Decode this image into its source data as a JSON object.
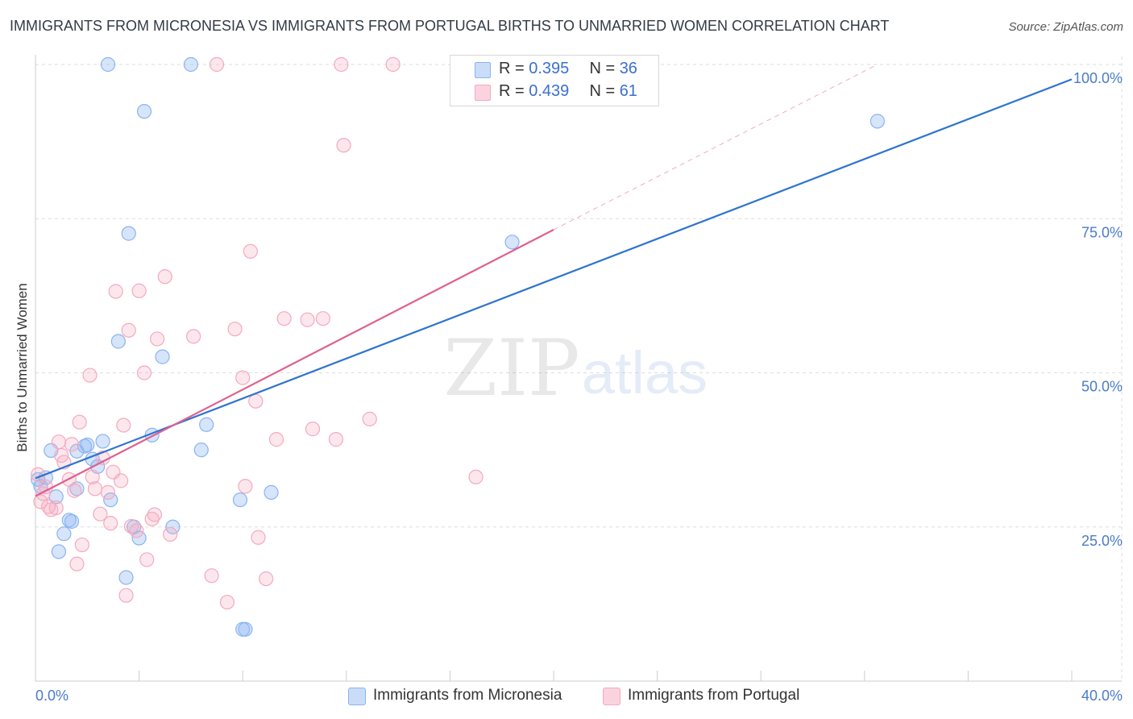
{
  "header": {
    "title": "IMMIGRANTS FROM MICRONESIA VS IMMIGRANTS FROM PORTUGAL BIRTHS TO UNMARRIED WOMEN CORRELATION CHART",
    "source": "Source: ZipAtlas.com"
  },
  "watermark": {
    "zip": "ZIP",
    "atlas": "atlas"
  },
  "legend": {
    "rows": [
      {
        "r_label": "R =",
        "r_value": "0.395",
        "n_label": "N =",
        "n_value": "36"
      },
      {
        "r_label": "R =",
        "r_value": "0.439",
        "n_label": "N =",
        "n_value": "61"
      }
    ]
  },
  "colors": {
    "micronesia": "#8ab4f0",
    "micronesia_line": "#2f73d0",
    "portugal": "#f4a9c0",
    "portugal_line": "#e0608e",
    "tick_label": "#4a7bc8"
  },
  "chart_data": {
    "type": "scatter",
    "title": "IMMIGRANTS FROM MICRONESIA VS IMMIGRANTS FROM PORTUGAL BIRTHS TO UNMARRIED WOMEN CORRELATION CHART",
    "xlabel": "",
    "ylabel": "Births to Unmarried Women",
    "xlim": [
      0,
      40
    ],
    "ylim": [
      0,
      100
    ],
    "x_tick_labels": [
      "0.0%",
      "40.0%"
    ],
    "y_tick_labels": [
      "25.0%",
      "50.0%",
      "75.0%",
      "100.0%"
    ],
    "y_ticks": [
      25,
      50,
      75,
      100
    ],
    "grid": true,
    "legend_position": "bottom",
    "series": [
      {
        "name": "Immigrants from Micronesia",
        "color": "#8ab4f0",
        "r": 0.395,
        "n": 36,
        "trend": {
          "x": [
            0,
            40
          ],
          "y": [
            32.9,
            97.6
          ]
        },
        "points": [
          [
            0.1,
            32.7
          ],
          [
            0.2,
            31.6
          ],
          [
            0.4,
            33.0
          ],
          [
            0.6,
            37.4
          ],
          [
            0.8,
            29.9
          ],
          [
            0.9,
            21.0
          ],
          [
            1.1,
            23.9
          ],
          [
            1.3,
            26.1
          ],
          [
            1.4,
            25.9
          ],
          [
            1.6,
            31.2
          ],
          [
            1.6,
            37.3
          ],
          [
            1.9,
            38.1
          ],
          [
            2.0,
            38.3
          ],
          [
            2.2,
            36.0
          ],
          [
            2.4,
            34.8
          ],
          [
            2.6,
            38.9
          ],
          [
            2.9,
            29.4
          ],
          [
            2.8,
            100
          ],
          [
            3.2,
            55.1
          ],
          [
            3.5,
            16.8
          ],
          [
            3.6,
            72.6
          ],
          [
            3.8,
            25.0
          ],
          [
            4.0,
            23.2
          ],
          [
            4.2,
            92.4
          ],
          [
            4.5,
            39.9
          ],
          [
            4.9,
            52.6
          ],
          [
            5.3,
            25.0
          ],
          [
            6.0,
            100
          ],
          [
            6.4,
            37.5
          ],
          [
            6.6,
            41.6
          ],
          [
            7.9,
            29.4
          ],
          [
            8.0,
            8.4
          ],
          [
            8.1,
            8.4
          ],
          [
            9.1,
            30.6
          ],
          [
            18.4,
            71.2
          ],
          [
            32.5,
            90.8
          ]
        ]
      },
      {
        "name": "Immigrants from Portugal",
        "color": "#f4a9c0",
        "r": 0.439,
        "n": 61,
        "trend": {
          "x": [
            0,
            20
          ],
          "y": [
            30.0,
            73.2
          ]
        },
        "trend_extension": {
          "x": [
            20,
            32.5
          ],
          "y": [
            73.2,
            100
          ]
        },
        "points": [
          [
            0.1,
            33.5
          ],
          [
            0.2,
            29.1
          ],
          [
            0.3,
            30.4
          ],
          [
            0.4,
            31.5
          ],
          [
            0.5,
            28.3
          ],
          [
            0.6,
            27.8
          ],
          [
            0.8,
            28.1
          ],
          [
            0.9,
            38.8
          ],
          [
            1.0,
            36.6
          ],
          [
            1.1,
            35.5
          ],
          [
            1.3,
            32.7
          ],
          [
            1.4,
            38.4
          ],
          [
            1.5,
            30.9
          ],
          [
            1.6,
            19.0
          ],
          [
            1.7,
            42.0
          ],
          [
            1.8,
            22.1
          ],
          [
            2.1,
            49.6
          ],
          [
            2.2,
            33.1
          ],
          [
            2.3,
            31.2
          ],
          [
            2.5,
            27.1
          ],
          [
            2.6,
            36.2
          ],
          [
            2.8,
            30.6
          ],
          [
            2.9,
            25.6
          ],
          [
            3.0,
            33.9
          ],
          [
            3.1,
            63.2
          ],
          [
            3.3,
            32.5
          ],
          [
            3.4,
            41.5
          ],
          [
            3.5,
            13.9
          ],
          [
            3.6,
            56.9
          ],
          [
            3.7,
            25.1
          ],
          [
            3.9,
            24.4
          ],
          [
            4.0,
            63.3
          ],
          [
            4.2,
            50.0
          ],
          [
            4.3,
            19.7
          ],
          [
            4.5,
            26.3
          ],
          [
            4.6,
            27.0
          ],
          [
            4.7,
            55.5
          ],
          [
            5.0,
            65.6
          ],
          [
            5.2,
            23.8
          ],
          [
            6.1,
            55.9
          ],
          [
            6.8,
            17.1
          ],
          [
            7.4,
            12.8
          ],
          [
            7.7,
            57.1
          ],
          [
            8.0,
            49.2
          ],
          [
            8.1,
            31.6
          ],
          [
            8.3,
            69.7
          ],
          [
            8.5,
            45.4
          ],
          [
            8.6,
            23.3
          ],
          [
            8.9,
            16.6
          ],
          [
            9.3,
            39.2
          ],
          [
            9.6,
            58.8
          ],
          [
            10.5,
            58.6
          ],
          [
            10.7,
            40.9
          ],
          [
            11.1,
            58.8
          ],
          [
            11.6,
            39.2
          ],
          [
            11.8,
            100
          ],
          [
            11.9,
            86.9
          ],
          [
            12.9,
            42.5
          ],
          [
            13.8,
            100
          ],
          [
            17.0,
            33.1
          ],
          [
            7.0,
            100
          ]
        ]
      }
    ]
  },
  "bottom_legend": {
    "items": [
      {
        "label": "Immigrants from Micronesia"
      },
      {
        "label": "Immigrants from Portugal"
      }
    ]
  }
}
